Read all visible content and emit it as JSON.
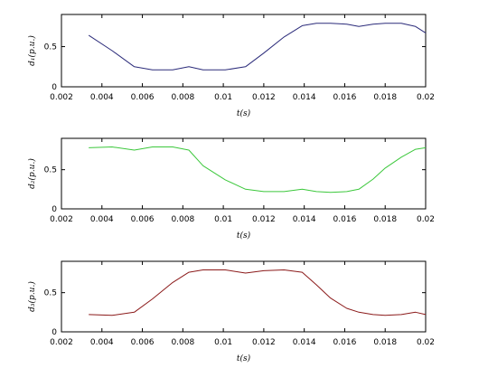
{
  "chart_data": [
    {
      "type": "line",
      "xlabel": "t(s)",
      "ylabel": "d₁(p.u.)",
      "xlim": [
        0.002,
        0.02
      ],
      "ylim": [
        0,
        0.9
      ],
      "xticks": [
        0.002,
        0.004,
        0.006,
        0.008,
        0.01,
        0.012,
        0.014,
        0.016,
        0.018,
        0.02
      ],
      "xtick_labels": [
        "0.002",
        "0.004",
        "0.006",
        "0.008",
        "0.01",
        "0.012",
        "0.014",
        "0.016",
        "0.018",
        "0.02"
      ],
      "yticks": [
        0,
        0.5
      ],
      "ytick_labels": [
        "0",
        "0.5"
      ],
      "grid": false,
      "series": [
        {
          "color": "#2b2b7a",
          "x": [
            0.00335,
            0.0045,
            0.0056,
            0.0065,
            0.0075,
            0.0083,
            0.009,
            0.0101,
            0.0111,
            0.012,
            0.013,
            0.0139,
            0.0146,
            0.0153,
            0.0161,
            0.0167,
            0.0174,
            0.018,
            0.0188,
            0.0195,
            0.02
          ],
          "y": [
            0.64,
            0.45,
            0.25,
            0.21,
            0.21,
            0.25,
            0.21,
            0.21,
            0.25,
            0.42,
            0.62,
            0.76,
            0.79,
            0.79,
            0.78,
            0.75,
            0.78,
            0.79,
            0.79,
            0.75,
            0.67
          ]
        }
      ]
    },
    {
      "type": "line",
      "xlabel": "t(s)",
      "ylabel": "d₂(p.u.)",
      "xlim": [
        0.002,
        0.02
      ],
      "ylim": [
        0,
        0.9
      ],
      "xticks": [
        0.002,
        0.004,
        0.006,
        0.008,
        0.01,
        0.012,
        0.014,
        0.016,
        0.018,
        0.02
      ],
      "xtick_labels": [
        "0.002",
        "0.004",
        "0.006",
        "0.008",
        "0.01",
        "0.012",
        "0.014",
        "0.016",
        "0.018",
        "0.02"
      ],
      "yticks": [
        0,
        0.5
      ],
      "ytick_labels": [
        "0",
        "0.5"
      ],
      "grid": false,
      "series": [
        {
          "color": "#3cc83c",
          "x": [
            0.00335,
            0.0045,
            0.0056,
            0.0065,
            0.0075,
            0.0083,
            0.009,
            0.0101,
            0.0111,
            0.012,
            0.013,
            0.0139,
            0.0146,
            0.0153,
            0.0161,
            0.0167,
            0.0174,
            0.018,
            0.0188,
            0.0195,
            0.02
          ],
          "y": [
            0.78,
            0.79,
            0.75,
            0.79,
            0.79,
            0.75,
            0.55,
            0.37,
            0.25,
            0.22,
            0.22,
            0.25,
            0.22,
            0.21,
            0.22,
            0.25,
            0.38,
            0.52,
            0.66,
            0.76,
            0.78
          ]
        }
      ]
    },
    {
      "type": "line",
      "xlabel": "t(s)",
      "ylabel": "d₃(p.u.)",
      "xlim": [
        0.002,
        0.02
      ],
      "ylim": [
        0,
        0.9
      ],
      "xticks": [
        0.002,
        0.004,
        0.006,
        0.008,
        0.01,
        0.012,
        0.014,
        0.016,
        0.018,
        0.02
      ],
      "xtick_labels": [
        "0.002",
        "0.004",
        "0.006",
        "0.008",
        "0.01",
        "0.012",
        "0.014",
        "0.016",
        "0.018",
        "0.02"
      ],
      "yticks": [
        0,
        0.5
      ],
      "ytick_labels": [
        "0",
        "0.5"
      ],
      "grid": false,
      "series": [
        {
          "color": "#8b1a1a",
          "x": [
            0.00335,
            0.0045,
            0.0056,
            0.0065,
            0.0075,
            0.0083,
            0.009,
            0.0101,
            0.0111,
            0.012,
            0.013,
            0.0139,
            0.0146,
            0.0153,
            0.0161,
            0.0167,
            0.0174,
            0.018,
            0.0188,
            0.0195,
            0.02
          ],
          "y": [
            0.22,
            0.21,
            0.25,
            0.42,
            0.63,
            0.76,
            0.79,
            0.79,
            0.75,
            0.78,
            0.79,
            0.76,
            0.6,
            0.43,
            0.3,
            0.25,
            0.22,
            0.21,
            0.22,
            0.25,
            0.22
          ]
        }
      ]
    }
  ]
}
